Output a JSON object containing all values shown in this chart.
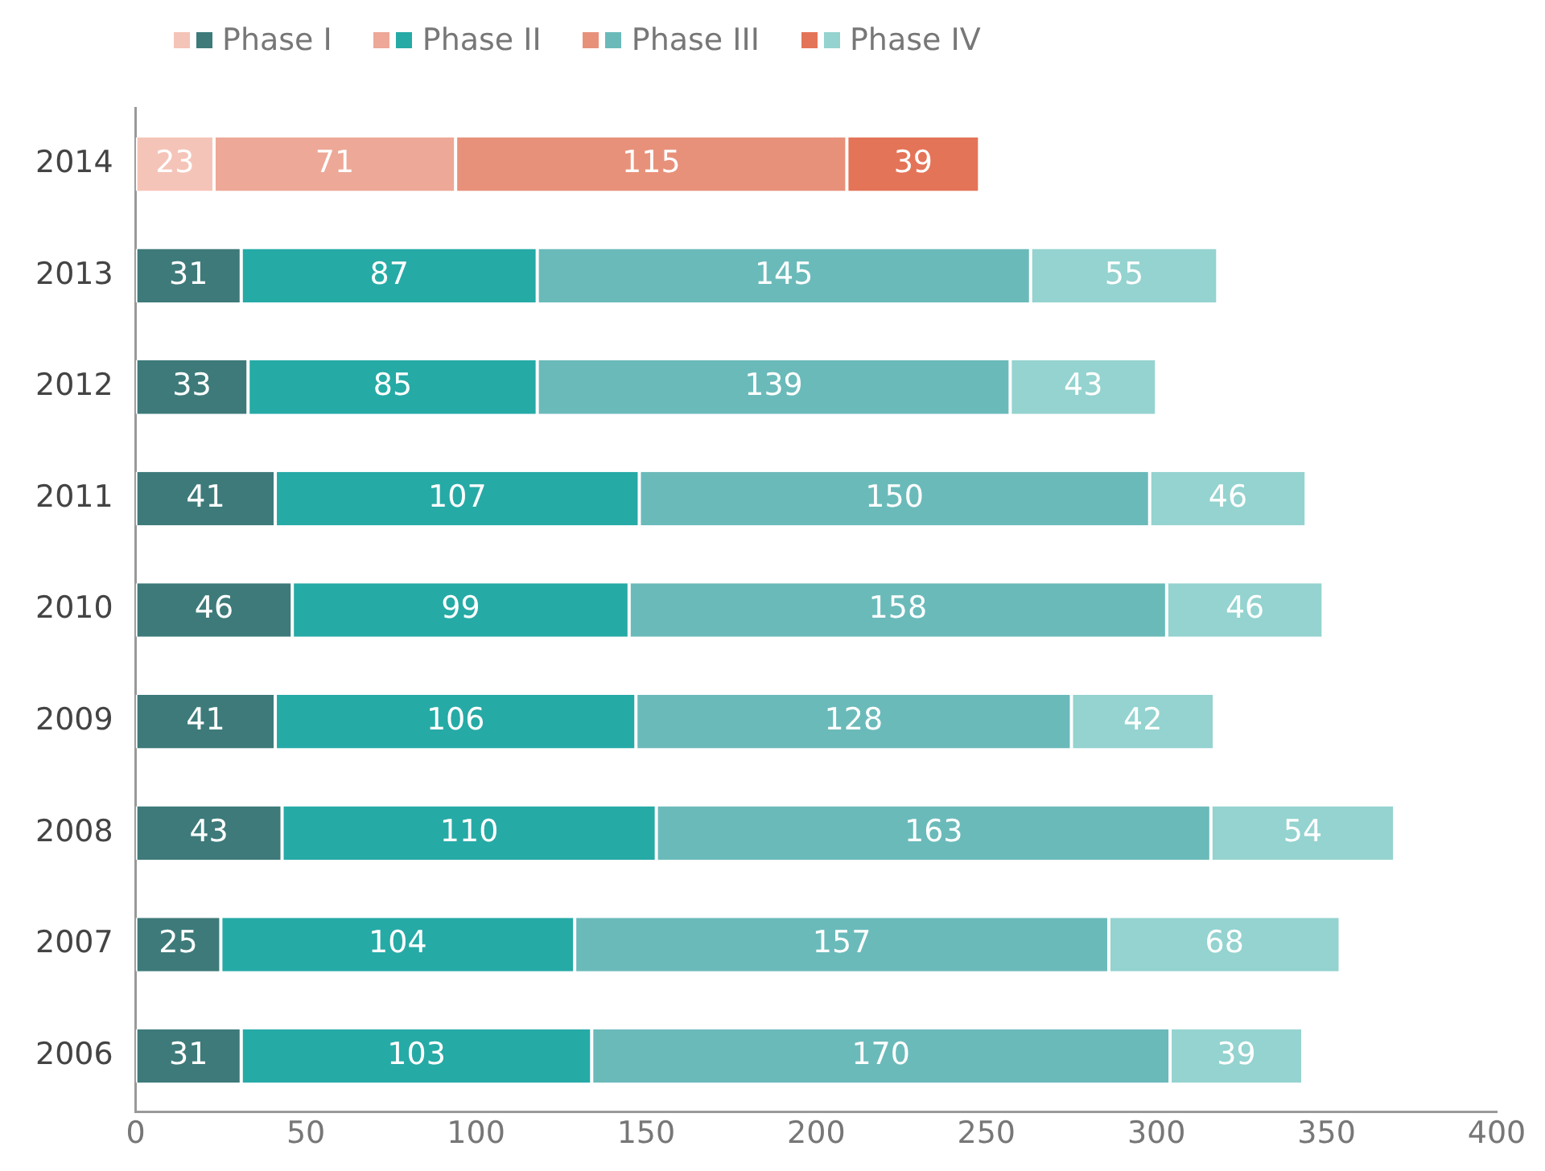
{
  "chart_data": {
    "type": "bar",
    "orientation": "horizontal",
    "stacked": true,
    "categories": [
      "2014",
      "2013",
      "2012",
      "2011",
      "2010",
      "2009",
      "2008",
      "2007",
      "2006"
    ],
    "series": [
      {
        "name": "Phase I",
        "colors": [
          "#f5c4b8",
          "#3e7a7a",
          "#3e7a7a",
          "#3e7a7a",
          "#3e7a7a",
          "#3e7a7a",
          "#3e7a7a",
          "#3e7a7a",
          "#3e7a7a"
        ],
        "values": [
          23,
          31,
          33,
          41,
          46,
          41,
          43,
          25,
          31
        ]
      },
      {
        "name": "Phase II",
        "colors": [
          "#eda897",
          "#26aaa6",
          "#26aaa6",
          "#26aaa6",
          "#26aaa6",
          "#26aaa6",
          "#26aaa6",
          "#26aaa6",
          "#26aaa6"
        ],
        "values": [
          71,
          87,
          85,
          107,
          99,
          106,
          110,
          104,
          103
        ]
      },
      {
        "name": "Phase III",
        "colors": [
          "#e8917a",
          "#6bbaba",
          "#6bbaba",
          "#6bbaba",
          "#6bbaba",
          "#6bbaba",
          "#6bbaba",
          "#6bbaba",
          "#6bbaba"
        ],
        "values": [
          115,
          145,
          139,
          150,
          158,
          128,
          163,
          157,
          170
        ]
      },
      {
        "name": "Phase IV",
        "colors": [
          "#e47458",
          "#94d3cf",
          "#94d3cf",
          "#94d3cf",
          "#94d3cf",
          "#94d3cf",
          "#94d3cf",
          "#94d3cf",
          "#94d3cf"
        ],
        "values": [
          39,
          55,
          43,
          46,
          46,
          42,
          54,
          68,
          39
        ]
      }
    ],
    "xlim": [
      0,
      400
    ],
    "xticks": [
      0,
      50,
      100,
      150,
      200,
      250,
      300,
      350,
      400
    ],
    "grid": false,
    "legend": "top left",
    "data_labels": true
  }
}
